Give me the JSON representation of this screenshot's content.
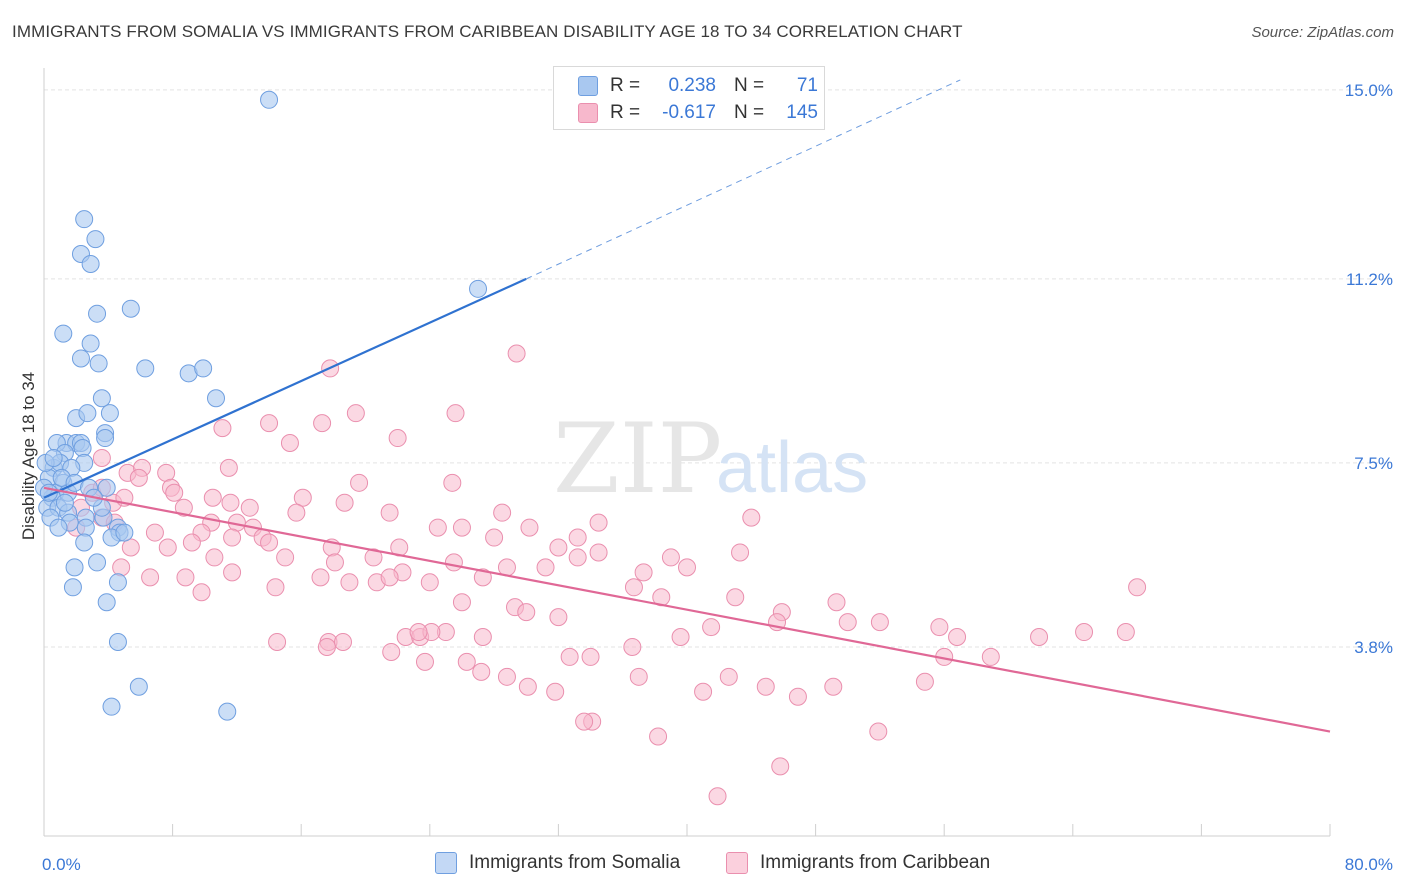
{
  "title": "IMMIGRANTS FROM SOMALIA VS IMMIGRANTS FROM CARIBBEAN DISABILITY AGE 18 TO 34 CORRELATION CHART",
  "source": "Source: ZipAtlas.com",
  "watermark": {
    "zip": "ZIP",
    "atlas": "atlas"
  },
  "legend": {
    "r_label": "R =",
    "n_label": "N =",
    "rows": [
      {
        "r": "0.238",
        "n": "71"
      },
      {
        "r": "-0.617",
        "n": "145"
      }
    ]
  },
  "bottom_legend": [
    "Immigrants from Somalia",
    "Immigrants from Caribbean"
  ],
  "colors": {
    "somalia_fill": "#a9c8f0",
    "somalia_stroke": "#6f9fe0",
    "somalia_line": "#2f72d0",
    "caribbean_fill": "#f7b8cc",
    "caribbean_stroke": "#ea8fae",
    "caribbean_line": "#e06896",
    "axis_text": "#3b78d6",
    "grid": "#e3e3e3"
  },
  "chart_data": {
    "type": "scatter",
    "title": "IMMIGRANTS FROM SOMALIA VS IMMIGRANTS FROM CARIBBEAN DISABILITY AGE 18 TO 34 CORRELATION CHART",
    "xlabel": "",
    "ylabel": "Disability Age 18 to 34",
    "xlim": [
      0,
      80
    ],
    "ylim": [
      0,
      15.6
    ],
    "x_tick_labels": [
      "0.0%",
      "80.0%"
    ],
    "y_tick_labels": [
      "15.0%",
      "11.2%",
      "7.5%",
      "3.8%"
    ],
    "y_ticks": [
      15.0,
      11.2,
      7.5,
      3.8
    ],
    "grid": true,
    "legend_position": "top-center",
    "series": [
      {
        "name": "Immigrants from Somalia",
        "r": 0.238,
        "n": 71,
        "trend": {
          "x": [
            0.0,
            30.0
          ],
          "y": [
            6.8,
            11.2
          ],
          "dashed_to": [
            57.0,
            15.2
          ]
        },
        "points": [
          [
            14.0,
            14.8
          ],
          [
            2.5,
            12.4
          ],
          [
            3.2,
            12.0
          ],
          [
            2.3,
            11.7
          ],
          [
            2.9,
            11.5
          ],
          [
            27.0,
            11.0
          ],
          [
            3.3,
            10.5
          ],
          [
            5.4,
            10.6
          ],
          [
            1.2,
            10.1
          ],
          [
            2.9,
            9.9
          ],
          [
            2.3,
            9.6
          ],
          [
            3.4,
            9.5
          ],
          [
            6.3,
            9.4
          ],
          [
            9.0,
            9.3
          ],
          [
            9.9,
            9.4
          ],
          [
            3.6,
            8.8
          ],
          [
            10.7,
            8.8
          ],
          [
            2.0,
            8.4
          ],
          [
            2.7,
            8.5
          ],
          [
            4.1,
            8.5
          ],
          [
            3.8,
            8.1
          ],
          [
            1.4,
            7.9
          ],
          [
            2.0,
            7.9
          ],
          [
            2.3,
            7.9
          ],
          [
            3.8,
            8.0
          ],
          [
            0.8,
            7.9
          ],
          [
            1.3,
            7.7
          ],
          [
            2.4,
            7.8
          ],
          [
            2.5,
            7.5
          ],
          [
            0.6,
            7.4
          ],
          [
            1.0,
            7.5
          ],
          [
            1.7,
            7.4
          ],
          [
            0.3,
            7.2
          ],
          [
            1.2,
            7.1
          ],
          [
            0.7,
            6.9
          ],
          [
            1.5,
            6.9
          ],
          [
            0.5,
            6.8
          ],
          [
            0.2,
            6.6
          ],
          [
            0.9,
            6.6
          ],
          [
            1.5,
            6.5
          ],
          [
            2.6,
            6.4
          ],
          [
            1.6,
            6.3
          ],
          [
            0.4,
            6.4
          ],
          [
            3.7,
            6.4
          ],
          [
            3.9,
            7.0
          ],
          [
            3.6,
            6.6
          ],
          [
            4.6,
            6.2
          ],
          [
            4.7,
            6.1
          ],
          [
            2.6,
            6.2
          ],
          [
            4.2,
            6.0
          ],
          [
            5.0,
            6.1
          ],
          [
            2.5,
            5.9
          ],
          [
            3.3,
            5.5
          ],
          [
            1.9,
            5.4
          ],
          [
            4.6,
            5.1
          ],
          [
            1.8,
            5.0
          ],
          [
            3.9,
            4.7
          ],
          [
            4.6,
            3.9
          ],
          [
            5.9,
            3.0
          ],
          [
            4.2,
            2.6
          ],
          [
            11.4,
            2.5
          ],
          [
            0.1,
            7.5
          ],
          [
            0.0,
            7.0
          ],
          [
            0.3,
            6.9
          ],
          [
            1.1,
            7.2
          ],
          [
            1.9,
            7.1
          ],
          [
            0.6,
            7.6
          ],
          [
            1.3,
            6.7
          ],
          [
            2.8,
            7.0
          ],
          [
            3.1,
            6.8
          ],
          [
            0.9,
            6.2
          ]
        ]
      },
      {
        "name": "Immigrants from Caribbean",
        "r": -0.617,
        "n": 145,
        "trend": {
          "x": [
            0.0,
            80.0
          ],
          "y": [
            7.0,
            2.1
          ]
        },
        "points": [
          [
            29.4,
            9.7
          ],
          [
            17.8,
            9.4
          ],
          [
            25.6,
            8.5
          ],
          [
            19.4,
            8.5
          ],
          [
            14.0,
            8.3
          ],
          [
            17.3,
            8.3
          ],
          [
            11.1,
            8.2
          ],
          [
            22.0,
            8.0
          ],
          [
            15.3,
            7.9
          ],
          [
            3.6,
            7.6
          ],
          [
            5.2,
            7.3
          ],
          [
            6.1,
            7.4
          ],
          [
            7.6,
            7.3
          ],
          [
            11.5,
            7.4
          ],
          [
            5.9,
            7.2
          ],
          [
            19.6,
            7.1
          ],
          [
            25.4,
            7.1
          ],
          [
            7.9,
            7.0
          ],
          [
            8.1,
            6.9
          ],
          [
            10.5,
            6.8
          ],
          [
            3.0,
            6.9
          ],
          [
            3.6,
            7.0
          ],
          [
            4.3,
            6.7
          ],
          [
            5.0,
            6.8
          ],
          [
            16.1,
            6.8
          ],
          [
            18.7,
            6.7
          ],
          [
            8.7,
            6.6
          ],
          [
            11.6,
            6.7
          ],
          [
            12.8,
            6.6
          ],
          [
            15.7,
            6.5
          ],
          [
            21.5,
            6.5
          ],
          [
            28.5,
            6.5
          ],
          [
            2.3,
            6.6
          ],
          [
            3.6,
            6.4
          ],
          [
            10.4,
            6.3
          ],
          [
            12.0,
            6.3
          ],
          [
            13.0,
            6.2
          ],
          [
            24.5,
            6.2
          ],
          [
            26.0,
            6.2
          ],
          [
            33.2,
            6.0
          ],
          [
            34.5,
            6.3
          ],
          [
            44.0,
            6.4
          ],
          [
            2.0,
            6.2
          ],
          [
            4.4,
            6.3
          ],
          [
            6.9,
            6.1
          ],
          [
            9.8,
            6.1
          ],
          [
            11.7,
            6.0
          ],
          [
            13.6,
            6.0
          ],
          [
            14.0,
            5.9
          ],
          [
            17.9,
            5.8
          ],
          [
            22.1,
            5.8
          ],
          [
            28.0,
            6.0
          ],
          [
            30.2,
            6.2
          ],
          [
            32.0,
            5.8
          ],
          [
            34.5,
            5.7
          ],
          [
            39.0,
            5.6
          ],
          [
            43.3,
            5.7
          ],
          [
            5.4,
            5.8
          ],
          [
            7.7,
            5.8
          ],
          [
            9.2,
            5.9
          ],
          [
            10.6,
            5.6
          ],
          [
            15.0,
            5.6
          ],
          [
            18.1,
            5.5
          ],
          [
            20.5,
            5.6
          ],
          [
            22.3,
            5.3
          ],
          [
            25.5,
            5.5
          ],
          [
            28.8,
            5.4
          ],
          [
            31.2,
            5.4
          ],
          [
            33.2,
            5.6
          ],
          [
            37.3,
            5.3
          ],
          [
            40.0,
            5.4
          ],
          [
            4.8,
            5.4
          ],
          [
            6.6,
            5.2
          ],
          [
            8.8,
            5.2
          ],
          [
            11.7,
            5.3
          ],
          [
            14.4,
            5.0
          ],
          [
            17.2,
            5.2
          ],
          [
            19.0,
            5.1
          ],
          [
            20.7,
            5.1
          ],
          [
            21.5,
            5.2
          ],
          [
            24.0,
            5.1
          ],
          [
            27.3,
            5.2
          ],
          [
            36.7,
            5.0
          ],
          [
            38.4,
            4.8
          ],
          [
            43.0,
            4.8
          ],
          [
            45.9,
            4.5
          ],
          [
            49.3,
            4.7
          ],
          [
            68.0,
            5.0
          ],
          [
            9.8,
            4.9
          ],
          [
            26.0,
            4.7
          ],
          [
            29.3,
            4.6
          ],
          [
            30.0,
            4.5
          ],
          [
            32.0,
            4.4
          ],
          [
            25.0,
            4.1
          ],
          [
            27.3,
            4.0
          ],
          [
            22.5,
            4.0
          ],
          [
            23.4,
            4.0
          ],
          [
            24.1,
            4.1
          ],
          [
            23.3,
            4.1
          ],
          [
            17.7,
            3.9
          ],
          [
            14.5,
            3.9
          ],
          [
            17.6,
            3.8
          ],
          [
            18.6,
            3.9
          ],
          [
            21.6,
            3.7
          ],
          [
            23.7,
            3.5
          ],
          [
            26.3,
            3.5
          ],
          [
            28.8,
            3.2
          ],
          [
            32.7,
            3.6
          ],
          [
            34.0,
            3.6
          ],
          [
            36.6,
            3.8
          ],
          [
            39.6,
            4.0
          ],
          [
            41.5,
            4.2
          ],
          [
            45.6,
            4.3
          ],
          [
            50.0,
            4.3
          ],
          [
            52.0,
            4.3
          ],
          [
            55.7,
            4.2
          ],
          [
            56.8,
            4.0
          ],
          [
            61.9,
            4.0
          ],
          [
            64.7,
            4.1
          ],
          [
            67.3,
            4.1
          ],
          [
            56.0,
            3.6
          ],
          [
            58.9,
            3.6
          ],
          [
            27.2,
            3.3
          ],
          [
            30.1,
            3.0
          ],
          [
            31.8,
            2.9
          ],
          [
            34.1,
            2.3
          ],
          [
            33.6,
            2.3
          ],
          [
            37.0,
            3.2
          ],
          [
            38.2,
            2.0
          ],
          [
            41.0,
            2.9
          ],
          [
            42.6,
            3.2
          ],
          [
            44.9,
            3.0
          ],
          [
            46.9,
            2.8
          ],
          [
            49.1,
            3.0
          ],
          [
            51.9,
            2.1
          ],
          [
            54.8,
            3.1
          ],
          [
            41.9,
            0.8
          ],
          [
            45.8,
            1.4
          ]
        ]
      }
    ]
  }
}
